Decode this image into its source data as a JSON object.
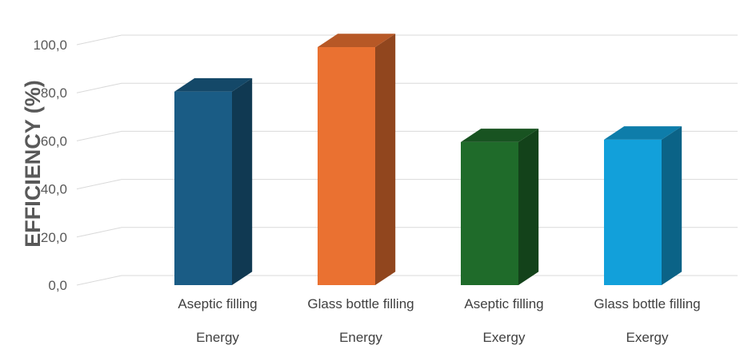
{
  "chart_data": {
    "type": "bar",
    "style": "3d-column",
    "categories": [
      "Aseptic filling",
      "Glass bottle filling",
      "Aseptic filling",
      "Glass bottle filling"
    ],
    "groups": [
      "Energy",
      "Energy",
      "Exergy",
      "Exergy"
    ],
    "values": [
      80.5,
      99.0,
      59.5,
      60.5
    ],
    "colors": [
      "#1a5c85",
      "#ea7131",
      "#1f6b2a",
      "#12a0da"
    ],
    "ylabel": "EFFICIENCY (%)",
    "ylim": [
      0,
      100
    ],
    "yticks": [
      "0,0",
      "20,0",
      "40,0",
      "60,0",
      "80,0",
      "100,0"
    ],
    "grid": true,
    "legend": "none"
  }
}
